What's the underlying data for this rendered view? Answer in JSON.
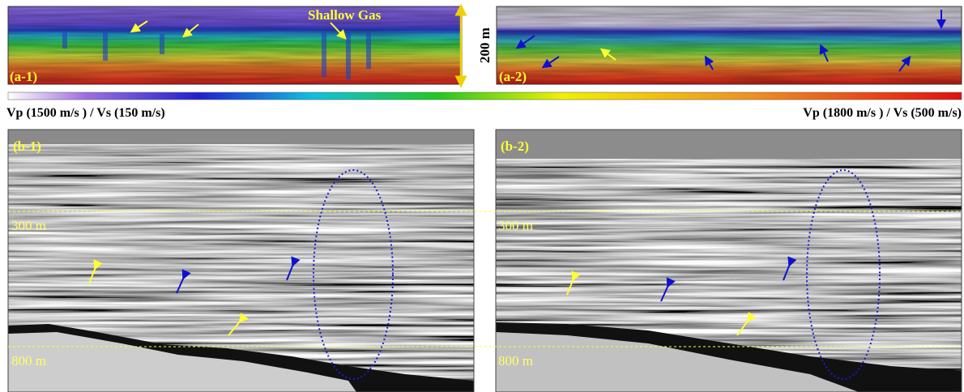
{
  "panels_a": [
    {
      "label": "(a-1)",
      "annotation": "Shallow Gas"
    },
    {
      "label": "(a-2)"
    }
  ],
  "scale_bar": "200 m",
  "colorbar": {
    "min_label": "Vp (1500 m/s ) / Vs (150 m/s)",
    "max_label": "Vp (1800 m/s ) / Vs (500 m/s)"
  },
  "panels_b": [
    {
      "label": "(b-1)",
      "depth_labels": [
        "300 m",
        "800 m"
      ]
    },
    {
      "label": "(b-2)",
      "depth_labels": [
        "300 m",
        "800 m"
      ]
    }
  ]
}
